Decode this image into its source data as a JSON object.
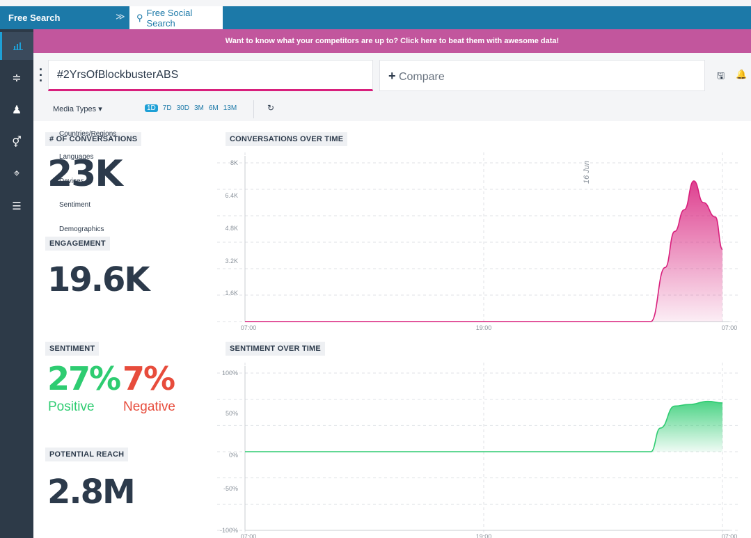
{
  "topbar": {
    "title": "Free Search",
    "tab_label": "Free Social Search"
  },
  "banner": {
    "text": "Want to know what your competitors are up to? Click here to beat them with awesome data!"
  },
  "search": {
    "query": "#2YrsOfBlockbusterABS",
    "compare_label": "Compare"
  },
  "filters": {
    "media_types": "Media Types",
    "periods": [
      "1D",
      "7D",
      "30D",
      "3M",
      "6M",
      "13M"
    ],
    "active_period": "1D"
  },
  "dropdown": {
    "items": [
      "Countries/Regions",
      "Languages",
      "Devices",
      "Sentiment",
      "Demographics"
    ]
  },
  "metrics": {
    "conversations": {
      "label": "# OF CONVERSATIONS",
      "value": "23K"
    },
    "engagement": {
      "label": "ENGAGEMENT",
      "value": "19.6K"
    },
    "sentiment": {
      "label": "SENTIMENT",
      "positive_value": "27%",
      "positive_label": "Positive",
      "negative_value": "7%",
      "negative_label": "Negative"
    },
    "reach": {
      "label": "POTENTIAL REACH",
      "value": "2.8M"
    }
  },
  "colors": {
    "accent": "#d81f7c",
    "positive": "#2ecc71",
    "negative": "#e74c3c",
    "brand": "#1c79a8"
  },
  "chart_data": [
    {
      "type": "area",
      "title": "CONVERSATIONS OVER TIME",
      "x": [
        "07:00",
        "19:00",
        "07:00"
      ],
      "yticks": [
        "8K",
        "6.4K",
        "4.8K",
        "3.2K",
        "1.6K"
      ],
      "annotation": "16 Jun",
      "ylim": [
        0,
        8800
      ],
      "color": "#d81f7c",
      "series": [
        {
          "values": [
            [
              0,
              0
            ],
            [
              0.85,
              0
            ],
            [
              0.88,
              3000
            ],
            [
              0.9,
              5000
            ],
            [
              0.92,
              6200
            ],
            [
              0.94,
              7800
            ],
            [
              0.96,
              6600
            ],
            [
              0.985,
              5800
            ],
            [
              1,
              4000
            ]
          ]
        }
      ]
    },
    {
      "type": "area",
      "title": "SENTIMENT OVER TIME",
      "x": [
        "07:00",
        "19:00",
        "07:00"
      ],
      "yticks": [
        "100%",
        "50%",
        "0%",
        "-50%",
        "-100%"
      ],
      "ylim": [
        -100,
        100
      ],
      "color": "#2ecc71",
      "series": [
        {
          "values": [
            [
              0,
              0
            ],
            [
              0.85,
              0
            ],
            [
              0.87,
              30
            ],
            [
              0.9,
              58
            ],
            [
              0.93,
              60
            ],
            [
              0.97,
              64
            ],
            [
              1,
              62
            ]
          ]
        }
      ]
    }
  ]
}
